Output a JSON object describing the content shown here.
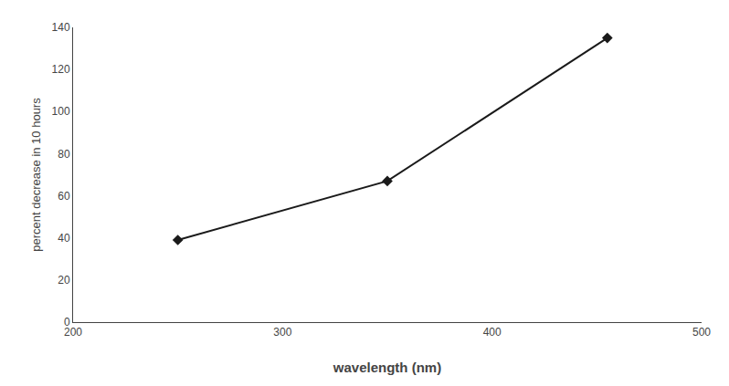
{
  "chart_data": {
    "type": "line",
    "x": [
      250,
      350,
      455
    ],
    "values": [
      39,
      67,
      135
    ],
    "xlabel": "wavelength (nm)",
    "ylabel": "percent decrease in 10 hours",
    "xlim": [
      200,
      500
    ],
    "ylim": [
      0,
      140
    ],
    "xticks": [
      200,
      300,
      400,
      500
    ],
    "yticks": [
      0,
      20,
      40,
      60,
      80,
      100,
      120,
      140
    ],
    "color": "#1a1a1a",
    "marker": "diamond",
    "line_style": "solid",
    "grid": false
  }
}
